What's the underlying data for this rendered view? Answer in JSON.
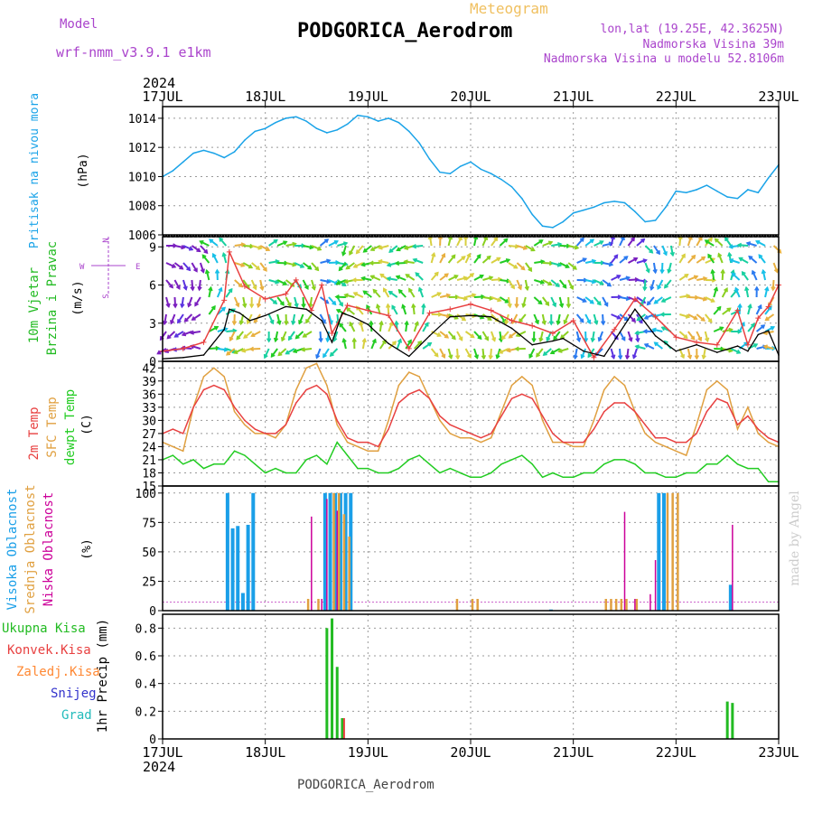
{
  "header": {
    "model_label": "Model",
    "model_name": "wrf-nmm_v3.9.1 e1km",
    "product": "Meteogram",
    "station": "PODGORICA_Aerodrom",
    "lonlat": "lon,lat (19.25E, 42.3625N)",
    "elevation": "Nadmorska Visina 39m",
    "model_elevation": "Nadmorska Visina u modelu 52.8106m"
  },
  "footer": {
    "station": "PODGORICA_Aerodrom",
    "credit": "made by Angel"
  },
  "colors": {
    "pressure": "#1aa3e8",
    "wind_label": "#22bb22",
    "temp2m": "#e84040",
    "sfc_temp": "#e0a040",
    "dewpoint": "#22cc22",
    "cloud_high": "#1a9fe8",
    "cloud_mid": "#e0a040",
    "cloud_low": "#cc0099",
    "precip_total": "#22bb22",
    "precip_conv": "#e84040",
    "precip_frozen": "#ff8833",
    "snow": "#3333cc",
    "graupel": "#22bbbb",
    "header_purple": "#aa44cc",
    "header_orange": "#f0c060"
  },
  "chart_data": {
    "type": "line",
    "time_axis": {
      "year": "2024",
      "ticks": [
        "17JUL",
        "18JUL",
        "19JUL",
        "20JUL",
        "21JUL",
        "22JUL",
        "23JUL"
      ],
      "range_days": [
        0,
        6
      ]
    },
    "panels": [
      {
        "id": "pressure",
        "ylabel": "Pritisak na nivou mora",
        "unit": "(hPa)",
        "yticks": [
          1006,
          1008,
          1010,
          1012,
          1014
        ],
        "ylim": [
          1006,
          1014.8
        ],
        "series": [
          {
            "key": "pressure",
            "x": [
              0,
              0.1,
              0.2,
              0.3,
              0.4,
              0.5,
              0.6,
              0.7,
              0.8,
              0.9,
              1.0,
              1.1,
              1.2,
              1.3,
              1.4,
              1.5,
              1.6,
              1.7,
              1.8,
              1.9,
              2.0,
              2.1,
              2.2,
              2.3,
              2.4,
              2.5,
              2.6,
              2.7,
              2.8,
              2.9,
              3.0,
              3.1,
              3.2,
              3.3,
              3.4,
              3.5,
              3.6,
              3.7,
              3.8,
              3.9,
              4.0,
              4.1,
              4.2,
              4.3,
              4.4,
              4.5,
              4.6,
              4.7,
              4.8,
              4.9,
              5.0,
              5.1,
              5.2,
              5.3,
              5.4,
              5.5,
              5.6,
              5.7,
              5.8,
              5.9,
              6.0
            ],
            "y": [
              1010.0,
              1010.4,
              1011.0,
              1011.6,
              1011.8,
              1011.6,
              1011.3,
              1011.7,
              1012.5,
              1013.1,
              1013.3,
              1013.7,
              1014.0,
              1014.1,
              1013.8,
              1013.3,
              1013.0,
              1013.2,
              1013.6,
              1014.2,
              1014.1,
              1013.8,
              1014.0,
              1013.7,
              1013.1,
              1012.3,
              1011.2,
              1010.3,
              1010.2,
              1010.7,
              1011.0,
              1010.5,
              1010.2,
              1009.8,
              1009.3,
              1008.5,
              1007.4,
              1006.6,
              1006.5,
              1006.9,
              1007.5,
              1007.7,
              1007.9,
              1008.2,
              1008.3,
              1008.2,
              1007.6,
              1006.9,
              1007.0,
              1007.9,
              1009.0,
              1008.9,
              1009.1,
              1009.4,
              1009.0,
              1008.6,
              1008.5,
              1009.1,
              1008.9,
              1009.9,
              1010.8
            ]
          }
        ]
      },
      {
        "id": "wind",
        "labels": [
          "10m Vjetar",
          "Brzina i Pravac"
        ],
        "unit": "(m/s)",
        "compass": {
          "n": "N",
          "w": "W",
          "e": "E",
          "s": "S"
        },
        "yticks": [
          0,
          3,
          6,
          9
        ],
        "ylim": [
          0,
          9.8
        ],
        "series": [
          {
            "key": "wind_speed",
            "x": [
              0,
              0.2,
              0.4,
              0.6,
              0.65,
              0.75,
              0.85,
              1.0,
              1.2,
              1.4,
              1.55,
              1.65,
              1.75,
              1.85,
              2.0,
              2.2,
              2.4,
              2.6,
              2.8,
              3.0,
              3.2,
              3.4,
              3.6,
              3.8,
              3.9,
              4.1,
              4.3,
              4.6,
              4.8,
              5.0,
              5.2,
              5.4,
              5.6,
              5.7,
              5.8,
              5.9,
              6.0
            ],
            "y": [
              0.2,
              0.3,
              0.5,
              2.5,
              4.1,
              3.8,
              3.2,
              3.6,
              4.3,
              4.1,
              3.2,
              1.5,
              3.8,
              3.5,
              2.9,
              1.4,
              0.4,
              2.0,
              3.5,
              3.6,
              3.5,
              2.6,
              1.3,
              1.6,
              1.8,
              0.8,
              0.4,
              4.1,
              2.0,
              0.8,
              1.3,
              0.7,
              1.2,
              0.8,
              2.1,
              2.4,
              0.5
            ]
          },
          {
            "key": "wind_gust",
            "x": [
              0,
              0.2,
              0.4,
              0.6,
              0.65,
              0.8,
              1.0,
              1.2,
              1.3,
              1.45,
              1.55,
              1.65,
              1.8,
              2.0,
              2.2,
              2.4,
              2.6,
              2.8,
              3.0,
              3.2,
              3.4,
              3.6,
              3.8,
              4.0,
              4.2,
              4.4,
              4.6,
              4.8,
              5.0,
              5.2,
              5.4,
              5.6,
              5.7,
              5.8,
              5.9,
              6.0
            ],
            "y": [
              0.8,
              1.0,
              1.5,
              4.8,
              8.6,
              5.9,
              4.9,
              5.3,
              6.4,
              4.0,
              6.0,
              2.2,
              4.4,
              4.0,
              3.6,
              1.0,
              3.8,
              4.1,
              4.5,
              4.0,
              3.2,
              2.8,
              2.2,
              3.2,
              0.3,
              2.5,
              4.9,
              3.5,
              1.9,
              1.5,
              1.3,
              4.0,
              1.3,
              3.4,
              4.3,
              6.0
            ]
          }
        ]
      },
      {
        "id": "temperature",
        "labels": [
          "2m Temp",
          "SFC Temp",
          "dewpt Temp"
        ],
        "unit": "(C)",
        "yticks": [
          15,
          18,
          21,
          24,
          27,
          30,
          33,
          36,
          39,
          42
        ],
        "ylim": [
          15,
          43.5
        ],
        "series": [
          {
            "key": "sfc_temp",
            "x": [
              0,
              0.1,
              0.2,
              0.3,
              0.4,
              0.5,
              0.6,
              0.7,
              0.8,
              0.9,
              1.0,
              1.1,
              1.2,
              1.3,
              1.4,
              1.5,
              1.6,
              1.7,
              1.8,
              1.9,
              2.0,
              2.1,
              2.2,
              2.3,
              2.4,
              2.5,
              2.6,
              2.7,
              2.8,
              2.9,
              3.0,
              3.1,
              3.2,
              3.3,
              3.4,
              3.5,
              3.6,
              3.7,
              3.8,
              3.9,
              4.0,
              4.1,
              4.2,
              4.3,
              4.4,
              4.5,
              4.6,
              4.7,
              4.8,
              4.9,
              5.0,
              5.1,
              5.2,
              5.3,
              5.4,
              5.5,
              5.6,
              5.7,
              5.8,
              5.9,
              6.0
            ],
            "y": [
              25,
              24,
              23,
              33,
              40,
              42,
              40,
              32,
              29,
              27,
              27,
              26,
              29,
              37,
              42,
              43,
              38,
              29,
              25,
              24,
              23,
              23,
              30,
              38,
              41,
              40,
              35,
              30,
              27,
              26,
              26,
              25,
              26,
              32,
              38,
              40,
              38,
              30,
              25,
              25,
              24,
              24,
              30,
              37,
              40,
              38,
              32,
              27,
              25,
              24,
              23,
              22,
              29,
              37,
              39,
              37,
              28,
              33,
              27,
              25,
              24
            ]
          },
          {
            "key": "temp_2m",
            "x": [
              0,
              0.1,
              0.2,
              0.3,
              0.4,
              0.5,
              0.6,
              0.7,
              0.8,
              0.9,
              1.0,
              1.1,
              1.2,
              1.3,
              1.4,
              1.5,
              1.6,
              1.7,
              1.8,
              1.9,
              2.0,
              2.1,
              2.2,
              2.3,
              2.4,
              2.5,
              2.6,
              2.7,
              2.8,
              2.9,
              3.0,
              3.1,
              3.2,
              3.3,
              3.4,
              3.5,
              3.6,
              3.7,
              3.8,
              3.9,
              4.0,
              4.1,
              4.2,
              4.3,
              4.4,
              4.5,
              4.6,
              4.7,
              4.8,
              4.9,
              5.0,
              5.1,
              5.2,
              5.3,
              5.4,
              5.5,
              5.6,
              5.7,
              5.8,
              5.9,
              6.0
            ],
            "y": [
              27,
              28,
              27,
              33,
              37,
              38,
              37,
              33,
              30,
              28,
              27,
              27,
              29,
              34,
              37,
              38,
              36,
              30,
              26,
              25,
              25,
              24,
              28,
              34,
              36,
              37,
              35,
              31,
              29,
              28,
              27,
              26,
              27,
              31,
              35,
              36,
              35,
              31,
              27,
              25,
              25,
              25,
              28,
              32,
              34,
              34,
              32,
              29,
              26,
              26,
              25,
              25,
              27,
              32,
              35,
              34,
              29,
              31,
              28,
              26,
              25
            ]
          },
          {
            "key": "dewpoint",
            "x": [
              0,
              0.1,
              0.2,
              0.3,
              0.4,
              0.5,
              0.6,
              0.7,
              0.8,
              0.9,
              1.0,
              1.1,
              1.2,
              1.3,
              1.4,
              1.5,
              1.6,
              1.7,
              1.8,
              1.9,
              2.0,
              2.1,
              2.2,
              2.3,
              2.4,
              2.5,
              2.6,
              2.7,
              2.8,
              2.9,
              3.0,
              3.1,
              3.2,
              3.3,
              3.4,
              3.5,
              3.6,
              3.7,
              3.8,
              3.9,
              4.0,
              4.1,
              4.2,
              4.3,
              4.4,
              4.5,
              4.6,
              4.7,
              4.8,
              4.9,
              5.0,
              5.1,
              5.2,
              5.3,
              5.4,
              5.5,
              5.6,
              5.7,
              5.8,
              5.9,
              6.0
            ],
            "y": [
              21,
              22,
              20,
              21,
              19,
              20,
              20,
              23,
              22,
              20,
              18,
              19,
              18,
              18,
              21,
              22,
              20,
              25,
              22,
              19,
              19,
              18,
              18,
              19,
              21,
              22,
              20,
              18,
              19,
              18,
              17,
              17,
              18,
              20,
              21,
              22,
              20,
              17,
              18,
              17,
              17,
              18,
              18,
              20,
              21,
              21,
              20,
              18,
              18,
              17,
              17,
              18,
              18,
              20,
              20,
              22,
              20,
              19,
              19,
              16,
              16
            ]
          }
        ]
      },
      {
        "id": "cloud",
        "labels": [
          "Visoka Oblacnost",
          "Srednja Oblacnost",
          "Niska Oblacnost"
        ],
        "unit": "(%)",
        "yticks": [
          0,
          25,
          50,
          75,
          100
        ],
        "ylim": [
          0,
          106
        ],
        "series": [
          {
            "key": "cloud_high",
            "x": [
              0.65,
              0.7,
              0.75,
              0.8,
              0.85,
              0.9,
              1.6,
              1.65,
              1.7,
              1.75,
              1.8,
              1.85,
              3.8,
              4.85,
              4.9,
              5.55
            ],
            "y": [
              100,
              70,
              72,
              15,
              73,
              100,
              100,
              100,
              100,
              100,
              100,
              100,
              1,
              100,
              100,
              22
            ]
          },
          {
            "key": "cloud_mid",
            "x": [
              1.4,
              1.5,
              1.65,
              1.7,
              1.75,
              1.8,
              2.85,
              3.0,
              3.05,
              4.3,
              4.35,
              4.4,
              4.45,
              4.5,
              4.6,
              4.9,
              4.95,
              5.0
            ],
            "y": [
              10,
              10,
              100,
              100,
              82,
              63,
              10,
              10,
              10,
              10,
              10,
              10,
              10,
              10,
              10,
              100,
              100,
              100
            ]
          },
          {
            "key": "cloud_low",
            "x": [
              1.45,
              1.55,
              1.6,
              1.7,
              4.5,
              4.6,
              4.75,
              4.8,
              5.55
            ],
            "y": [
              80,
              10,
              95,
              85,
              84,
              10,
              14,
              43,
              73
            ]
          }
        ]
      },
      {
        "id": "precip",
        "labels": [
          "Ukupna Kisa",
          "Konvek.Kisa",
          "Zaledj.Kisa",
          "Snijeg",
          "Grad"
        ],
        "ylabel": "1hr Precip (mm)",
        "yticks": [
          0,
          0.2,
          0.4,
          0.6,
          0.8
        ],
        "ylim": [
          0,
          0.9
        ],
        "series": [
          {
            "key": "precip_total",
            "x": [
              1.6,
              1.65,
              1.7,
              1.75,
              5.5,
              5.55
            ],
            "y": [
              0.8,
              0.87,
              0.52,
              0.15,
              0.27,
              0.26
            ]
          }
        ]
      }
    ]
  }
}
